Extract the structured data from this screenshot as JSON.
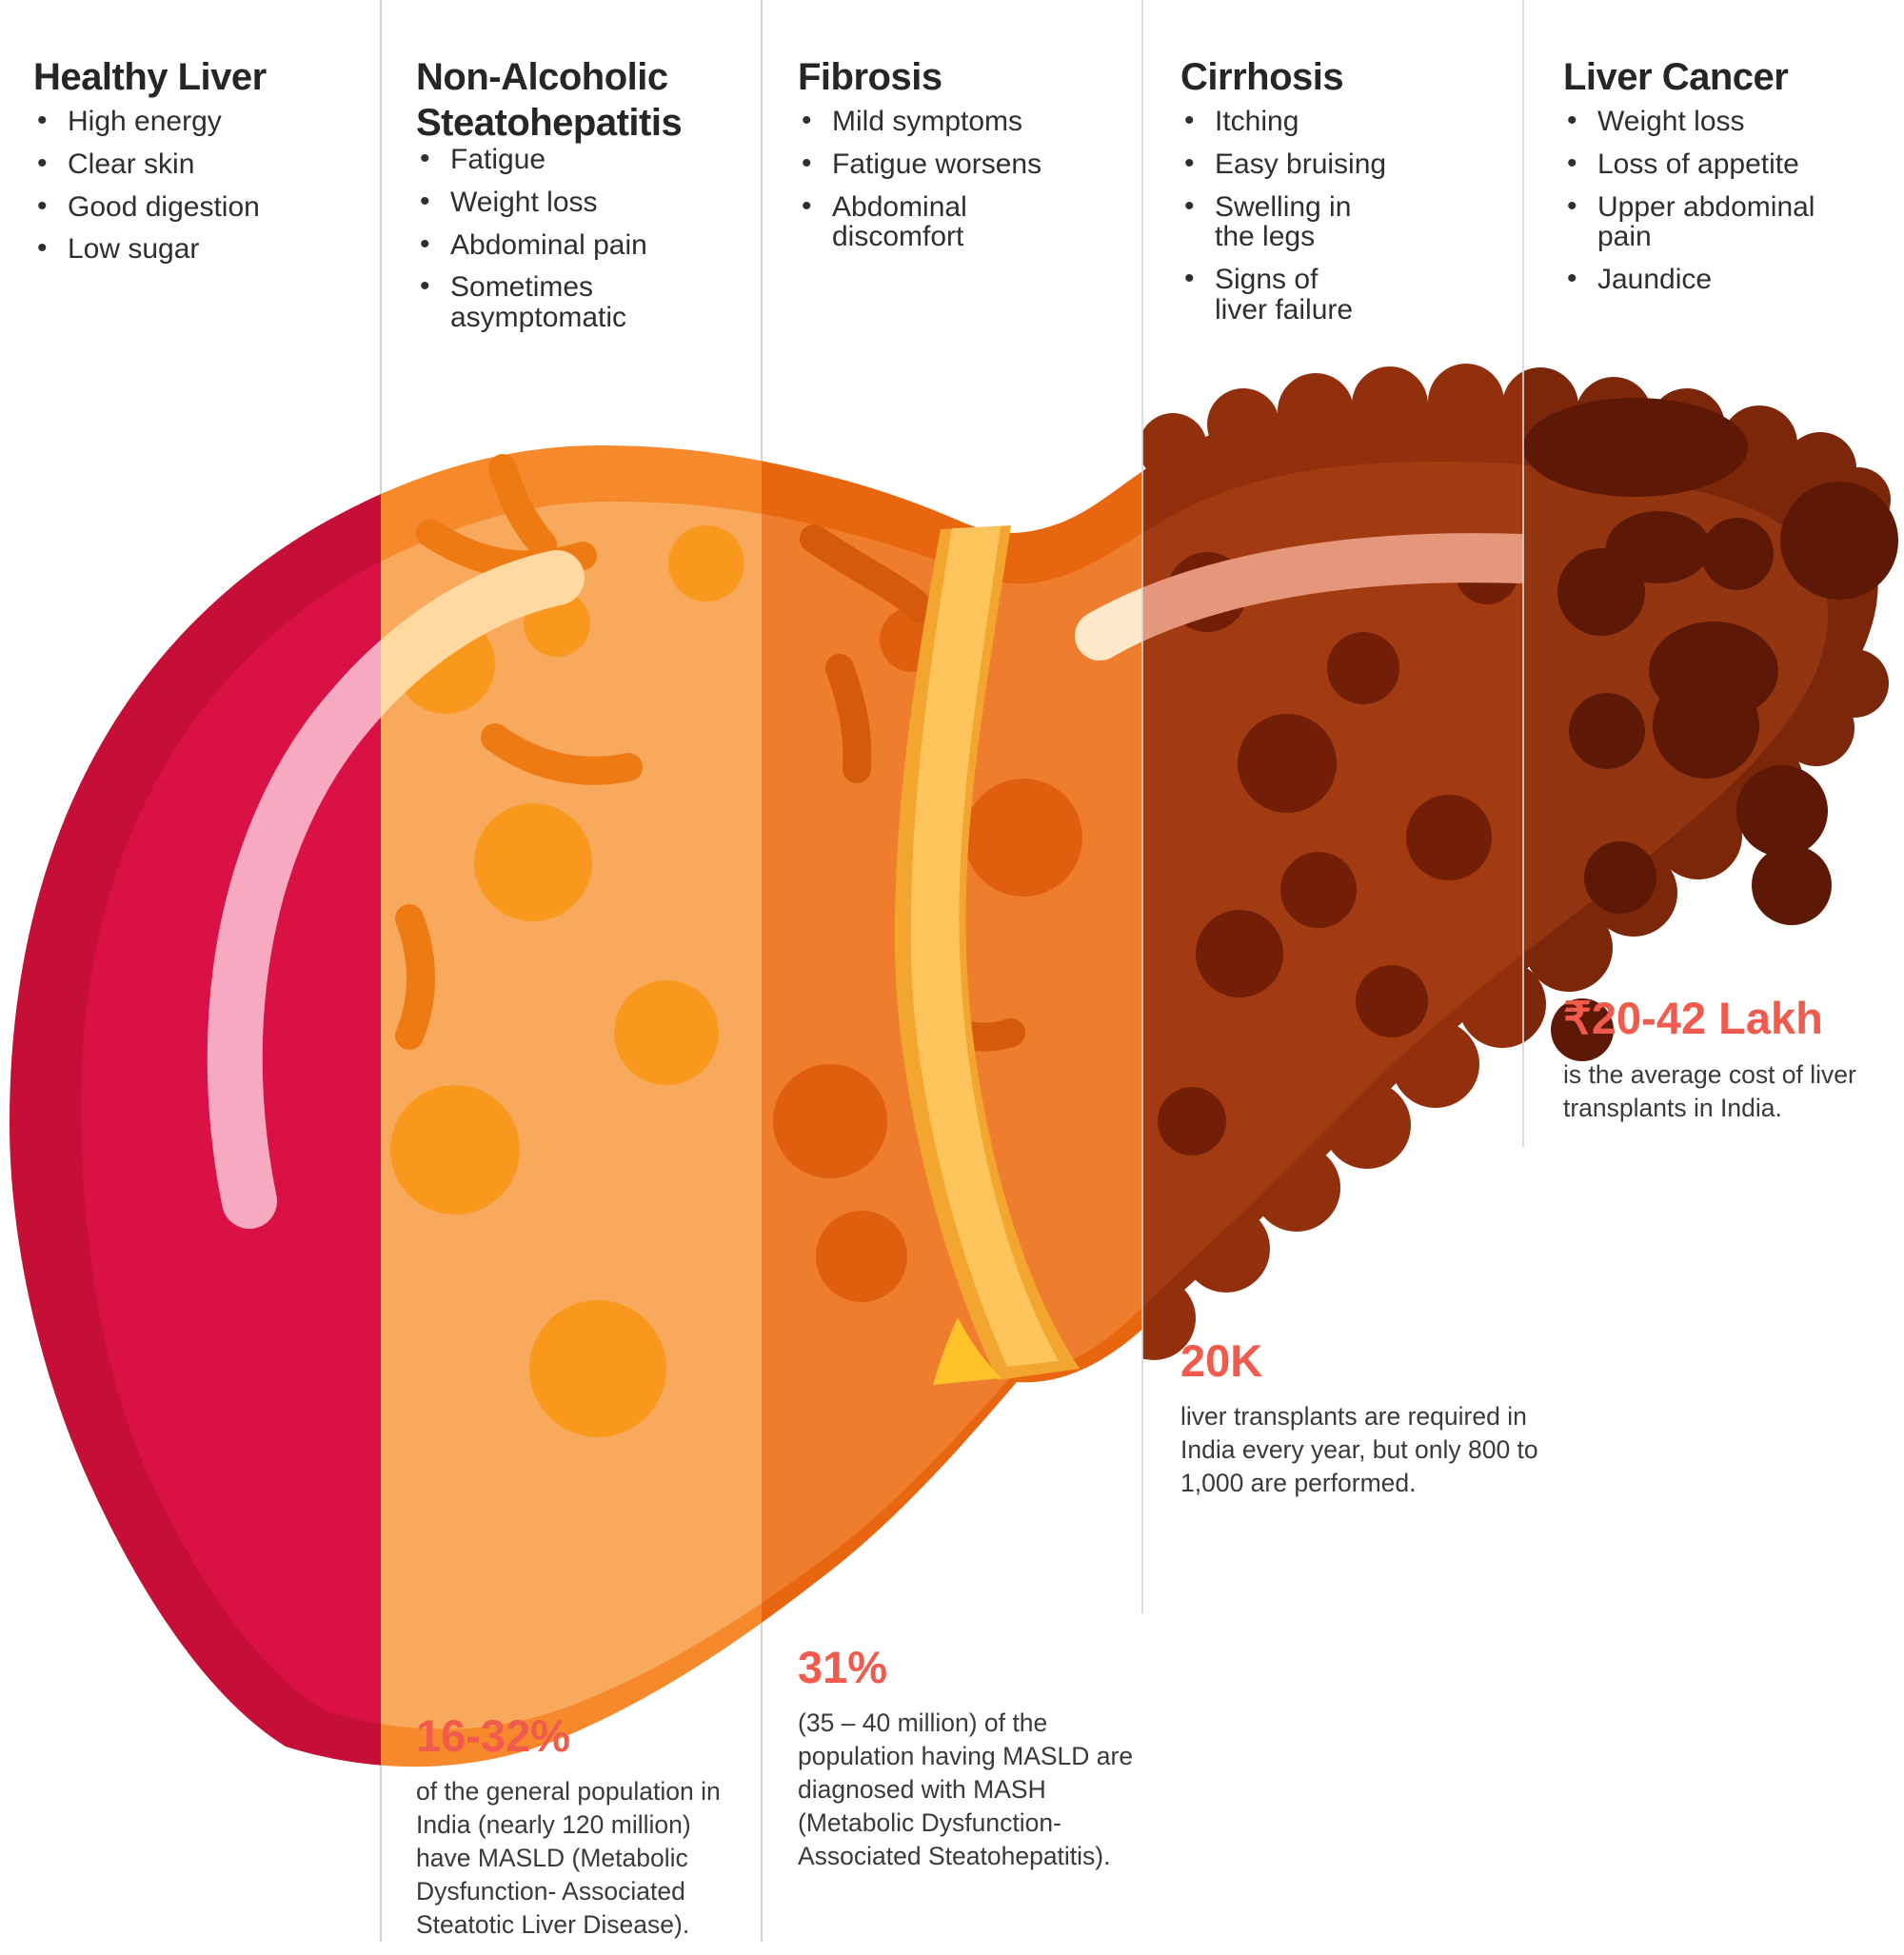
{
  "stages": [
    {
      "title": "Healthy Liver",
      "symptoms": [
        "High energy",
        "Clear skin",
        "Good digestion",
        "Low sugar"
      ],
      "palette": {
        "base": "#c50f37",
        "inner": "#d91144",
        "spot": "transparent",
        "vessel": "transparent",
        "highlight": "#f7a9c1",
        "bump": "transparent",
        "tumor": "transparent"
      }
    },
    {
      "title": "Non-Alcoholic Steatohepatitis",
      "symptoms": [
        "Fatigue",
        "Weight loss",
        "Abdominal pain",
        "Sometimes\nasymptomatic"
      ],
      "palette": {
        "base": "#f5892b",
        "inner": "#f9a95c",
        "spot": "#f8991e",
        "vessel": "#ee7a14",
        "highlight": "#ffd9a0",
        "bump": "transparent",
        "tumor": "transparent"
      }
    },
    {
      "title": "Fibrosis",
      "symptoms": [
        "Mild symptoms",
        "Fatigue worsens",
        "Abdominal\ndiscomfort"
      ],
      "palette": {
        "base": "#e8660f",
        "inner": "#ee7d2d",
        "spot": "#df5f0e",
        "vessel": "#d65a0c",
        "highlight": "#ffe7c9",
        "bump": "transparent",
        "tumor": "transparent"
      }
    },
    {
      "title": "Cirrhosis",
      "symptoms": [
        "Itching",
        "Easy bruising",
        "Swelling in\nthe legs",
        "Signs of\nliver failure"
      ],
      "palette": {
        "base": "#92300e",
        "inner": "#a23b11",
        "spot": "#731f08",
        "vessel": "transparent",
        "highlight": "#e6977b",
        "bump": "#92300e",
        "tumor": "transparent"
      }
    },
    {
      "title": "Liver Cancer",
      "symptoms": [
        "Weight loss",
        "Loss of appetite",
        "Upper abdominal\npain",
        "Jaundice"
      ],
      "palette": {
        "base": "#7c2709",
        "inner": "#943511",
        "spot": "#5d1906",
        "vessel": "transparent",
        "highlight": "transparent",
        "bump": "#7c2709",
        "tumor": "#5d1906"
      }
    }
  ],
  "stats": [
    {
      "value": "16-32%",
      "description": "of the general population in India (nearly 120 million) have MASLD (Metabolic Dysfunction- Associated Steatotic Liver Disease)."
    },
    {
      "value": "31%",
      "description": "(35 – 40 million) of the population having MASLD are diagnosed with MASH (Metabolic Dysfunction-Associated Steatohepatitis)."
    },
    {
      "value": "20K",
      "description": "liver transplants are required in India every year, but only 800 to 1,000 are performed."
    },
    {
      "value": "₹20-42 Lakh",
      "description": "is the average cost of liver transplants in India."
    }
  ],
  "colors": {
    "accent": "#f15b4e",
    "heading": "#262626",
    "body_text": "#3a3a3a",
    "divider": "#d4d4d4",
    "ribbon_main": "#fdc45c",
    "ribbon_shade": "#f3a62f",
    "ribbon_tip": "#ffc22b"
  }
}
